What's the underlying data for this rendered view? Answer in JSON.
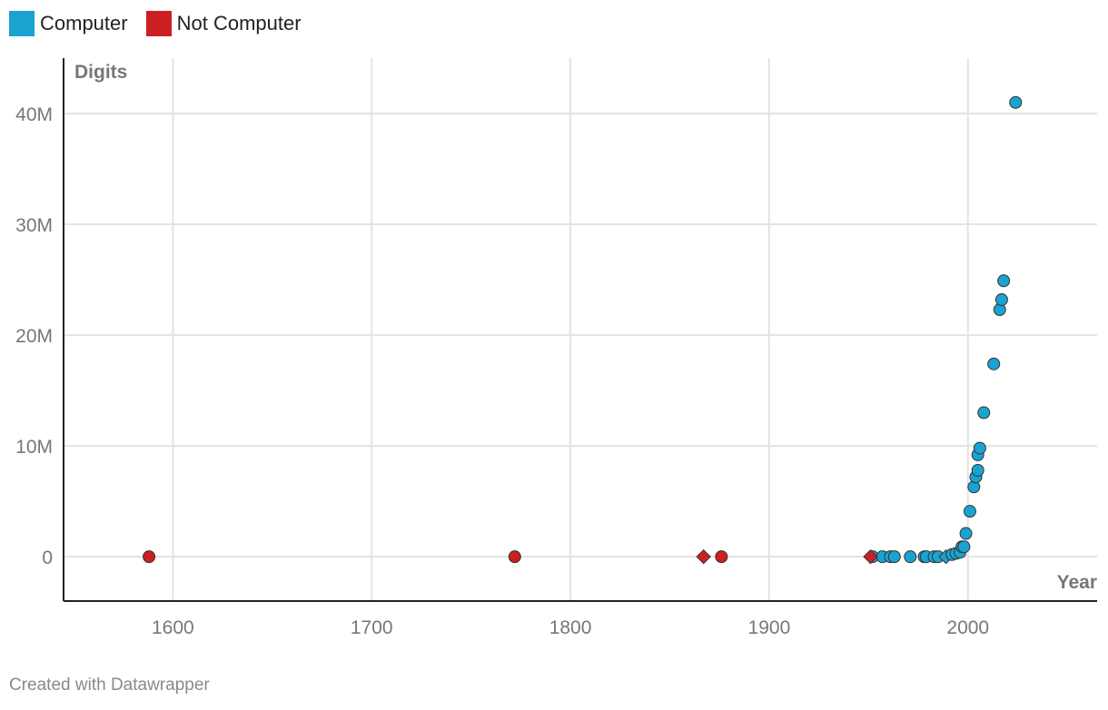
{
  "colors": {
    "computer": "#1aa3d1",
    "not_computer": "#cc1f22",
    "grid": "#e3e3e3",
    "axis": "#222222"
  },
  "legend": [
    {
      "label": "Computer",
      "color": "#1aa3d1"
    },
    {
      "label": "Not Computer",
      "color": "#cc1f22"
    }
  ],
  "footer": "Created with Datawrapper",
  "chart_data": {
    "type": "scatter",
    "title": "",
    "xlabel": "Year",
    "ylabel": "Digits",
    "xlim": [
      1545,
      2065
    ],
    "ylim": [
      -4000000,
      45000000
    ],
    "x_ticks": [
      1600,
      1700,
      1800,
      1900,
      2000
    ],
    "x_tick_labels": [
      "1600",
      "1700",
      "1800",
      "1900",
      "2000"
    ],
    "y_ticks": [
      0,
      10000000,
      20000000,
      30000000,
      40000000
    ],
    "y_tick_labels": [
      "0",
      "10M",
      "20M",
      "30M",
      "40M"
    ],
    "grid": true,
    "legend_position": "top-left",
    "series": [
      {
        "name": "Computer",
        "color": "#1aa3d1",
        "points": [
          {
            "x": 1952,
            "y": 0,
            "shape": "circle"
          },
          {
            "x": 1957,
            "y": 0,
            "shape": "circle"
          },
          {
            "x": 1961,
            "y": 0,
            "shape": "circle"
          },
          {
            "x": 1963,
            "y": 0,
            "shape": "circle"
          },
          {
            "x": 1971,
            "y": 0,
            "shape": "circle"
          },
          {
            "x": 1978,
            "y": 0,
            "shape": "circle"
          },
          {
            "x": 1979,
            "y": 0,
            "shape": "circle"
          },
          {
            "x": 1983,
            "y": 0,
            "shape": "circle"
          },
          {
            "x": 1985,
            "y": 0,
            "shape": "circle"
          },
          {
            "x": 1989,
            "y": 0,
            "shape": "diamond"
          },
          {
            "x": 1992,
            "y": 200000,
            "shape": "circle"
          },
          {
            "x": 1994,
            "y": 300000,
            "shape": "circle"
          },
          {
            "x": 1996,
            "y": 400000,
            "shape": "circle"
          },
          {
            "x": 1997,
            "y": 900000,
            "shape": "circle"
          },
          {
            "x": 1998,
            "y": 900000,
            "shape": "circle"
          },
          {
            "x": 1999,
            "y": 2100000,
            "shape": "circle"
          },
          {
            "x": 2001,
            "y": 4100000,
            "shape": "circle"
          },
          {
            "x": 2003,
            "y": 6300000,
            "shape": "circle"
          },
          {
            "x": 2004,
            "y": 7200000,
            "shape": "circle"
          },
          {
            "x": 2005,
            "y": 7800000,
            "shape": "circle"
          },
          {
            "x": 2005,
            "y": 9200000,
            "shape": "circle"
          },
          {
            "x": 2006,
            "y": 9800000,
            "shape": "circle"
          },
          {
            "x": 2008,
            "y": 13000000,
            "shape": "circle"
          },
          {
            "x": 2013,
            "y": 17400000,
            "shape": "circle"
          },
          {
            "x": 2016,
            "y": 22300000,
            "shape": "circle"
          },
          {
            "x": 2017,
            "y": 23200000,
            "shape": "circle"
          },
          {
            "x": 2018,
            "y": 24900000,
            "shape": "circle"
          },
          {
            "x": 2024,
            "y": 41000000,
            "shape": "circle"
          }
        ]
      },
      {
        "name": "Not Computer",
        "color": "#cc1f22",
        "points": [
          {
            "x": 1588,
            "y": 0,
            "shape": "circle"
          },
          {
            "x": 1772,
            "y": 0,
            "shape": "circle"
          },
          {
            "x": 1867,
            "y": 0,
            "shape": "diamond"
          },
          {
            "x": 1876,
            "y": 0,
            "shape": "circle"
          },
          {
            "x": 1951,
            "y": 0,
            "shape": "diamond"
          }
        ]
      }
    ]
  }
}
